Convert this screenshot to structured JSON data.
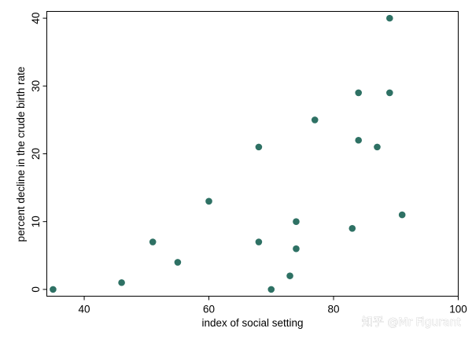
{
  "chart_data": {
    "type": "scatter",
    "xlabel": "index of social setting",
    "ylabel": "percent decline in the crude birth rate",
    "xlim": [
      34,
      100
    ],
    "ylim": [
      -1,
      41
    ],
    "xticks": [
      40,
      60,
      80,
      100
    ],
    "yticks": [
      0,
      10,
      20,
      30,
      40
    ],
    "grid": false,
    "marker_color": "#2e7164",
    "points": [
      {
        "x": 35,
        "y": 0
      },
      {
        "x": 46,
        "y": 1
      },
      {
        "x": 51,
        "y": 7
      },
      {
        "x": 55,
        "y": 4
      },
      {
        "x": 60,
        "y": 13
      },
      {
        "x": 68,
        "y": 21
      },
      {
        "x": 68,
        "y": 7
      },
      {
        "x": 70,
        "y": 0
      },
      {
        "x": 73,
        "y": 2
      },
      {
        "x": 74,
        "y": 6
      },
      {
        "x": 74,
        "y": 10
      },
      {
        "x": 77,
        "y": 25
      },
      {
        "x": 83,
        "y": 9
      },
      {
        "x": 84,
        "y": 29
      },
      {
        "x": 84,
        "y": 22
      },
      {
        "x": 87,
        "y": 21
      },
      {
        "x": 89,
        "y": 40
      },
      {
        "x": 89,
        "y": 29
      },
      {
        "x": 91,
        "y": 11
      }
    ]
  },
  "watermark": {
    "text": "知乎 @Mr Figurant"
  }
}
